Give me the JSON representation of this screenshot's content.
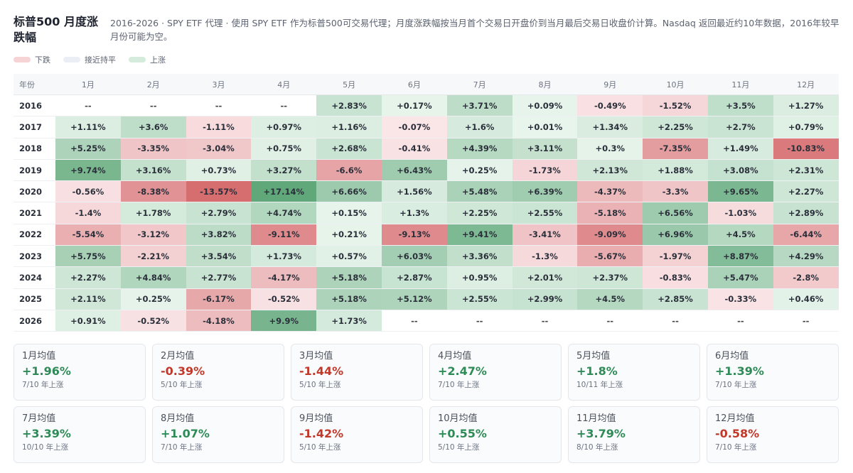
{
  "header": {
    "title": "标普500 月度涨跌幅",
    "description": "2016-2026 · SPY ETF 代理 · 使用 SPY ETF 作为标普500可交易代理；月度涨跌幅按当月首个交易日开盘价到当月最后交易日收盘价计算。Nasdaq 返回最近约10年数据，2016年较早月份可能为空。"
  },
  "legend": [
    {
      "label": "下跌",
      "color": "#f6d3d5"
    },
    {
      "label": "接近持平",
      "color": "#eceef6"
    },
    {
      "label": "上涨",
      "color": "#d5ecdc"
    }
  ],
  "chart_data": {
    "type": "heatmap",
    "year_header": "年份",
    "columns": [
      "1月",
      "2月",
      "3月",
      "4月",
      "5月",
      "6月",
      "7月",
      "8月",
      "9月",
      "10月",
      "11月",
      "12月"
    ],
    "empty_label": "--",
    "rows": [
      {
        "year": "2016",
        "values": [
          null,
          null,
          null,
          null,
          2.83,
          0.17,
          3.71,
          0.09,
          -0.49,
          -1.52,
          3.5,
          1.27
        ]
      },
      {
        "year": "2017",
        "values": [
          1.11,
          3.6,
          -1.11,
          0.97,
          1.16,
          -0.07,
          1.6,
          0.01,
          1.34,
          2.25,
          2.7,
          0.79
        ]
      },
      {
        "year": "2018",
        "values": [
          5.25,
          -3.35,
          -3.04,
          0.75,
          2.68,
          -0.41,
          4.39,
          3.11,
          0.3,
          -7.35,
          1.49,
          -10.83
        ]
      },
      {
        "year": "2019",
        "values": [
          9.74,
          3.16,
          0.73,
          3.27,
          -6.6,
          6.43,
          0.25,
          -1.73,
          2.13,
          1.88,
          3.08,
          2.31
        ]
      },
      {
        "year": "2020",
        "values": [
          -0.56,
          -8.38,
          -13.57,
          17.14,
          6.66,
          1.56,
          5.48,
          6.39,
          -4.37,
          -3.3,
          9.65,
          2.27
        ]
      },
      {
        "year": "2021",
        "values": [
          -1.4,
          1.78,
          2.79,
          4.74,
          0.15,
          1.3,
          2.25,
          2.55,
          -5.18,
          6.56,
          -1.03,
          2.89
        ]
      },
      {
        "year": "2022",
        "values": [
          -5.54,
          -3.12,
          3.82,
          -9.11,
          0.21,
          -9.13,
          9.41,
          -3.41,
          -9.09,
          6.96,
          4.5,
          -6.44
        ]
      },
      {
        "year": "2023",
        "values": [
          5.75,
          -2.21,
          3.54,
          1.73,
          0.57,
          6.03,
          3.36,
          -1.3,
          -5.67,
          -1.97,
          8.87,
          4.29
        ]
      },
      {
        "year": "2024",
        "values": [
          2.27,
          4.84,
          2.77,
          -4.17,
          5.18,
          2.87,
          0.95,
          2.01,
          2.37,
          -0.83,
          5.47,
          -2.8
        ]
      },
      {
        "year": "2025",
        "values": [
          2.11,
          0.25,
          -6.17,
          -0.52,
          5.18,
          5.12,
          2.55,
          2.99,
          4.5,
          2.85,
          -0.33,
          0.46
        ]
      },
      {
        "year": "2026",
        "values": [
          0.91,
          -0.52,
          -4.18,
          9.9,
          1.73,
          null,
          null,
          null,
          null,
          null,
          null,
          null
        ]
      }
    ]
  },
  "stats": [
    {
      "label": "1月均值",
      "value": "+1.96%",
      "sub": "7/10 年上涨",
      "sign": "pos"
    },
    {
      "label": "2月均值",
      "value": "-0.39%",
      "sub": "5/10 年上涨",
      "sign": "neg"
    },
    {
      "label": "3月均值",
      "value": "-1.44%",
      "sub": "5/10 年上涨",
      "sign": "neg"
    },
    {
      "label": "4月均值",
      "value": "+2.47%",
      "sub": "7/10 年上涨",
      "sign": "pos"
    },
    {
      "label": "5月均值",
      "value": "+1.8%",
      "sub": "10/11 年上涨",
      "sign": "pos"
    },
    {
      "label": "6月均值",
      "value": "+1.39%",
      "sub": "7/10 年上涨",
      "sign": "pos"
    },
    {
      "label": "7月均值",
      "value": "+3.39%",
      "sub": "10/10 年上涨",
      "sign": "pos"
    },
    {
      "label": "8月均值",
      "value": "+1.07%",
      "sub": "7/10 年上涨",
      "sign": "pos"
    },
    {
      "label": "9月均值",
      "value": "-1.42%",
      "sub": "5/10 年上涨",
      "sign": "neg"
    },
    {
      "label": "10月均值",
      "value": "+0.55%",
      "sub": "5/10 年上涨",
      "sign": "pos"
    },
    {
      "label": "11月均值",
      "value": "+3.79%",
      "sub": "8/10 年上涨",
      "sign": "pos"
    },
    {
      "label": "12月均值",
      "value": "-0.58%",
      "sub": "7/10 年上涨",
      "sign": "neg"
    }
  ]
}
